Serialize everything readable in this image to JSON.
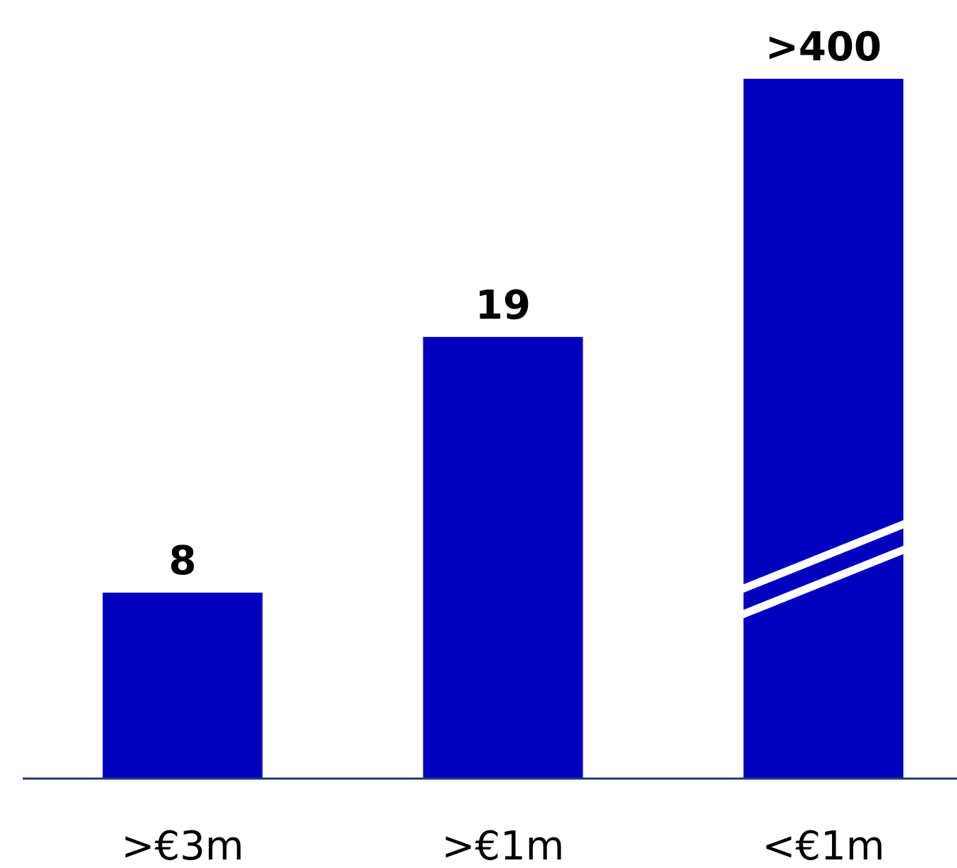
{
  "chart_data": {
    "type": "bar",
    "title": "",
    "xlabel": "",
    "ylabel": "",
    "categories": [
      ">€3m",
      ">€1m",
      "<€1m"
    ],
    "values": [
      8,
      19,
      400
    ],
    "data_labels": [
      "8",
      "19",
      ">400"
    ],
    "axis_break": {
      "category_index": 2
    },
    "grid": false,
    "legend": "none",
    "colors": {
      "bar": "#0000BF",
      "axis": "#1F3B73",
      "label_text": "#000000",
      "tick_text": "#000000",
      "break": "#ffffff"
    }
  }
}
